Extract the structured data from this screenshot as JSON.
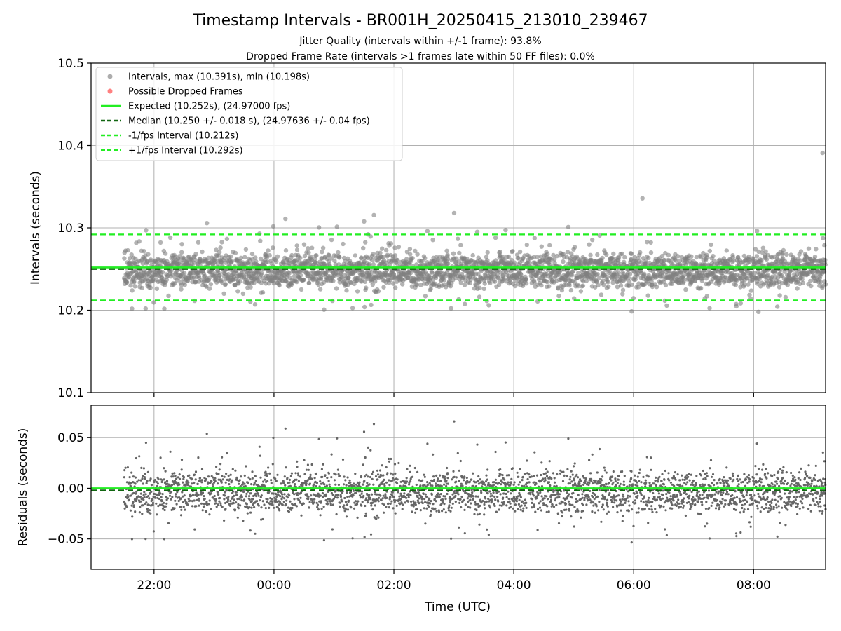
{
  "chart_data": {
    "type": "scatter",
    "title": "Timestamp Intervals - BR001H_20250415_213010_239467",
    "subtitle_lines": [
      "Jitter Quality (intervals within +/-1 frame): 93.8%",
      "Dropped Frame Rate (intervals >1 frames late within 50 FF files): 0.0%"
    ],
    "xlabel": "Time (UTC)",
    "xlim_hours": [
      -3.05,
      9.2
    ],
    "x_ticks": [
      {
        "h": -2,
        "label": "22:00"
      },
      {
        "h": 0,
        "label": "00:00"
      },
      {
        "h": 2,
        "label": "02:00"
      },
      {
        "h": 4,
        "label": "04:00"
      },
      {
        "h": 6,
        "label": "06:00"
      },
      {
        "h": 8,
        "label": "08:00"
      }
    ],
    "data_range_hours": [
      -2.5,
      9.2
    ],
    "grid": true,
    "legend_position": "upper-left",
    "colors": {
      "points": "#808080",
      "dropped": "#ff6060",
      "expected": "#22ee22",
      "median": "#116611",
      "bounds": "#22ee22"
    },
    "top_panel": {
      "ylabel": "Intervals (seconds)",
      "ylim": [
        10.1,
        10.5
      ],
      "y_ticks": [
        "10.1",
        "10.2",
        "10.3",
        "10.4",
        "10.5"
      ],
      "expected": 10.252,
      "median": 10.25,
      "lower": 10.212,
      "upper": 10.292,
      "max": 10.391,
      "min": 10.198,
      "median_std": 0.018,
      "sample_count": 3000,
      "dropped_frames": []
    },
    "bottom_panel": {
      "ylabel": "Residuals (seconds)",
      "ylim": [
        -0.08,
        0.082
      ],
      "y_ticks": [
        {
          "v": 0.05,
          "label": "0.05"
        },
        {
          "v": 0.0,
          "label": "0.00"
        },
        {
          "v": -0.05,
          "label": "−0.05"
        }
      ],
      "expected": 0.0,
      "median": -0.002
    },
    "legend": [
      {
        "kind": "dot",
        "color": "#999999",
        "label": "Intervals, max (10.391s), min (10.198s)"
      },
      {
        "kind": "dot",
        "color": "#ff6060",
        "label": "Possible Dropped Frames"
      },
      {
        "kind": "solid",
        "color": "#22ee22",
        "label": "Expected (10.252s), (24.97000 fps)"
      },
      {
        "kind": "dashed",
        "color": "#116611",
        "label": "Median (10.250 +/- 0.018 s), (24.97636 +/- 0.04 fps)"
      },
      {
        "kind": "dashed",
        "color": "#22ee22",
        "label": "-1/fps Interval (10.212s)"
      },
      {
        "kind": "dashed",
        "color": "#22ee22",
        "label": "+1/fps Interval (10.292s)"
      }
    ]
  }
}
